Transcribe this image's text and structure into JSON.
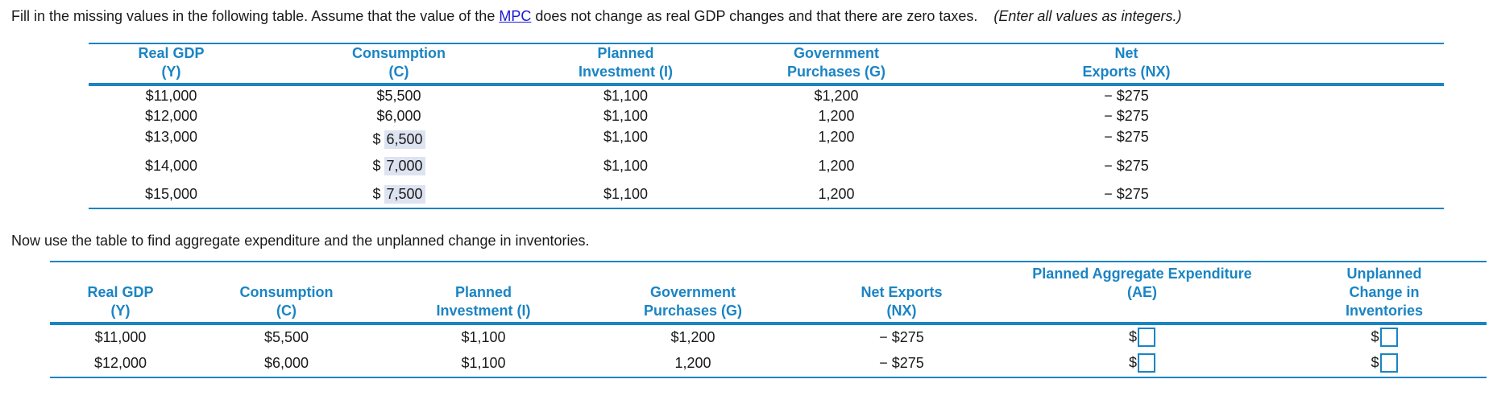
{
  "instruction": {
    "before_link": "Fill in the missing values in the following table. Assume that the value of the ",
    "link": "MPC",
    "after_link": " does not change as real GDP changes and that there are zero taxes.",
    "note": "(Enter all values as integers.)"
  },
  "table1": {
    "headers": [
      [
        "Real GDP",
        "(Y)"
      ],
      [
        "Consumption",
        "(C)"
      ],
      [
        "Planned",
        "Investment (I)"
      ],
      [
        "Government",
        "Purchases (G)"
      ],
      [
        "Net",
        "Exports (NX)"
      ]
    ],
    "rows": [
      {
        "y": "$11,000",
        "c": "$5,500",
        "i": "$1,100",
        "g": "$1,200",
        "nx": "− $275"
      },
      {
        "y": "$12,000",
        "c": "$6,000",
        "i": "$1,100",
        "g": "1,200",
        "nx": "− $275"
      },
      {
        "y": "$13,000",
        "c_prefix": "$",
        "c_input": "6,500",
        "i": "$1,100",
        "g": "1,200",
        "nx": "− $275"
      },
      {
        "y": "$14,000",
        "c_prefix": "$",
        "c_input": "7,000",
        "i": "$1,100",
        "g": "1,200",
        "nx": "− $275"
      },
      {
        "y": "$15,000",
        "c_prefix": "$",
        "c_input": "7,500",
        "i": "$1,100",
        "g": "1,200",
        "nx": "− $275"
      }
    ]
  },
  "paragraph2": "Now use the table to find aggregate expenditure and the unplanned change in inventories.",
  "table2": {
    "headers": [
      [
        "Real GDP",
        "(Y)"
      ],
      [
        "Consumption",
        "(C)"
      ],
      [
        "Planned",
        "Investment (I)"
      ],
      [
        "Government",
        "Purchases (G)"
      ],
      [
        "Net Exports",
        "(NX)"
      ],
      [
        "Planned Aggregate Expenditure",
        "(AE)"
      ],
      [
        "Unplanned",
        "Change in",
        "Inventories"
      ]
    ],
    "rows": [
      {
        "y": "$11,000",
        "c": "$5,500",
        "i": "$1,100",
        "g": "$1,200",
        "nx": "− $275",
        "ae_prefix": "$",
        "ae": "",
        "inv_prefix": "$",
        "inv": ""
      },
      {
        "y": "$12,000",
        "c": "$6,000",
        "i": "$1,100",
        "g": "1,200",
        "nx": "− $275",
        "ae_prefix": "$",
        "ae": "",
        "inv_prefix": "$",
        "inv": ""
      }
    ]
  },
  "colors": {
    "accent": "#1a84c4",
    "link": "#1a1ad4",
    "filled_bg": "#dde3f0"
  }
}
